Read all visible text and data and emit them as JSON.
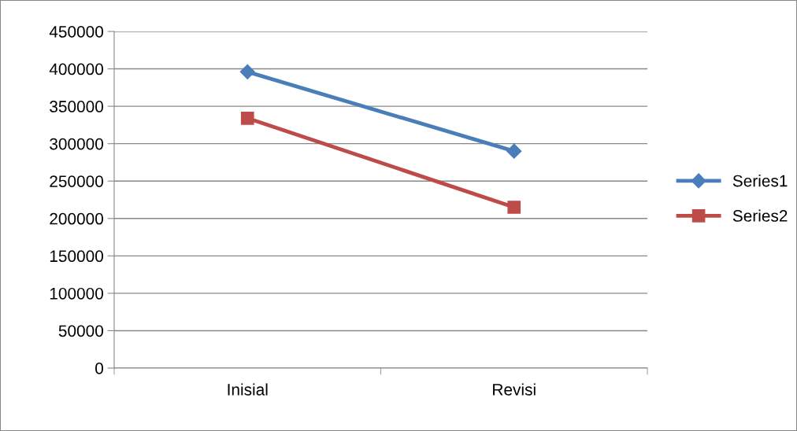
{
  "chart_data": {
    "type": "line",
    "categories": [
      "Inisial",
      "Revisi"
    ],
    "series": [
      {
        "name": "Series1",
        "color": "#4a7ebb",
        "marker": "diamond",
        "values": [
          396000,
          290000
        ]
      },
      {
        "name": "Series2",
        "color": "#be4b48",
        "marker": "square",
        "values": [
          334000,
          215000
        ]
      }
    ],
    "ylim": [
      0,
      450000
    ],
    "yticks": [
      0,
      50000,
      100000,
      150000,
      200000,
      250000,
      300000,
      350000,
      400000,
      450000
    ],
    "grid": "y",
    "legend": "right",
    "line_style": "solid"
  }
}
